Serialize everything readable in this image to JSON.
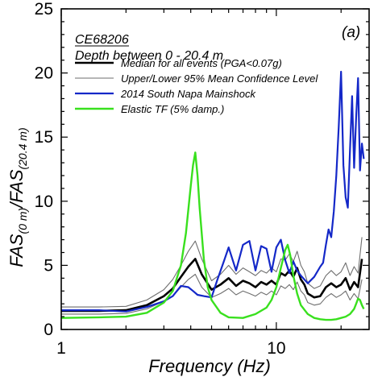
{
  "chart_data": {
    "type": "line",
    "station": "CE68206",
    "depth_note": "Depth between 0 - 20.4 m",
    "panel_label": "(a)",
    "xlabel": "Frequency (Hz)",
    "ylabel": {
      "base1": "FAS",
      "sub1": "(0 m)",
      "sep": "/",
      "base2": "FAS",
      "sub2": "(20.4 m)"
    },
    "xscale": "log",
    "xlim": [
      1,
      27
    ],
    "ylim": [
      0,
      25
    ],
    "xticks": [
      {
        "value": 1,
        "label": "1"
      },
      {
        "value": 10,
        "label": "10"
      }
    ],
    "yticks": [
      {
        "value": 0,
        "label": "0"
      },
      {
        "value": 5,
        "label": "5"
      },
      {
        "value": 10,
        "label": "10"
      },
      {
        "value": 15,
        "label": "15"
      },
      {
        "value": 20,
        "label": "20"
      },
      {
        "value": 25,
        "label": "25"
      }
    ],
    "grid": false,
    "legend_position": "top-left",
    "series": [
      {
        "name": "Median for all events (PGA<0.07g)",
        "color": "#000000",
        "width": 2.6,
        "x": [
          1.0,
          1.5,
          2.0,
          2.5,
          3.0,
          3.3,
          3.6,
          3.9,
          4.2,
          4.5,
          5.0,
          5.5,
          6.0,
          6.5,
          7.0,
          7.5,
          8.0,
          8.5,
          9.0,
          9.5,
          10.0,
          10.5,
          11.0,
          11.5,
          12.0,
          12.5,
          13.0,
          13.5,
          14.0,
          15.0,
          16.0,
          17.0,
          18.0,
          19.0,
          20.0,
          21.0,
          22.0,
          23.0,
          24.0,
          25.0
        ],
        "y": [
          1.45,
          1.45,
          1.5,
          1.9,
          2.6,
          3.2,
          4.1,
          4.9,
          5.5,
          4.3,
          3.1,
          3.5,
          4.0,
          3.4,
          3.8,
          3.6,
          3.3,
          3.7,
          3.5,
          3.8,
          3.5,
          4.4,
          4.2,
          4.6,
          4.1,
          4.8,
          3.9,
          3.5,
          2.8,
          2.5,
          2.6,
          3.3,
          3.6,
          3.3,
          3.5,
          4.0,
          3.1,
          3.7,
          3.3,
          5.5
        ]
      },
      {
        "name": "Upper/Lower 95% Mean Confidence Level",
        "color": "#6e6e6e",
        "width": 1.1,
        "x": [
          1.0,
          1.5,
          2.0,
          2.5,
          3.0,
          3.3,
          3.6,
          3.9,
          4.2,
          4.5,
          5.0,
          5.5,
          6.0,
          6.5,
          7.0,
          7.5,
          8.0,
          8.5,
          9.0,
          9.5,
          10.0,
          10.5,
          11.0,
          11.5,
          12.0,
          12.5,
          13.0,
          13.5,
          14.0,
          15.0,
          16.0,
          17.0,
          18.0,
          19.0,
          20.0,
          21.0,
          22.0,
          23.0,
          24.0,
          25.0
        ],
        "y": [
          1.75,
          1.75,
          1.8,
          2.3,
          3.1,
          3.9,
          5.0,
          6.1,
          6.9,
          5.5,
          3.8,
          4.3,
          5.0,
          4.3,
          4.8,
          4.5,
          4.2,
          4.6,
          4.4,
          4.8,
          4.5,
          5.5,
          5.4,
          5.9,
          5.3,
          6.1,
          5.0,
          4.5,
          3.6,
          3.2,
          3.4,
          4.2,
          4.6,
          4.2,
          4.5,
          5.2,
          4.2,
          4.9,
          4.4,
          7.2
        ]
      },
      {
        "name": "",
        "color": "#6e6e6e",
        "width": 1.1,
        "x": [
          1.0,
          1.5,
          2.0,
          2.5,
          3.0,
          3.3,
          3.6,
          3.9,
          4.2,
          4.5,
          5.0,
          5.5,
          6.0,
          6.5,
          7.0,
          7.5,
          8.0,
          8.5,
          9.0,
          9.5,
          10.0,
          10.5,
          11.0,
          11.5,
          12.0,
          12.5,
          13.0,
          13.5,
          14.0,
          15.0,
          16.0,
          17.0,
          18.0,
          19.0,
          20.0,
          21.0,
          22.0,
          23.0,
          24.0,
          25.0
        ],
        "y": [
          1.2,
          1.2,
          1.25,
          1.6,
          2.2,
          2.6,
          3.3,
          3.9,
          4.3,
          3.3,
          2.5,
          2.8,
          3.2,
          2.7,
          3.0,
          2.8,
          2.6,
          2.9,
          2.7,
          3.0,
          2.7,
          3.4,
          3.2,
          3.5,
          3.1,
          3.7,
          3.0,
          2.7,
          2.1,
          1.9,
          2.0,
          2.5,
          2.8,
          2.5,
          2.7,
          3.0,
          2.3,
          2.8,
          2.4,
          3.9
        ]
      },
      {
        "name": "2014 South Napa Mainshock",
        "color": "#1428c8",
        "width": 2.2,
        "x": [
          1.0,
          1.5,
          2.0,
          2.5,
          3.0,
          3.3,
          3.6,
          3.9,
          4.1,
          4.3,
          4.6,
          5.0,
          5.3,
          5.7,
          6.0,
          6.5,
          7.0,
          7.5,
          8.0,
          8.5,
          9.0,
          9.5,
          10.0,
          10.5,
          11.0,
          11.5,
          12.0,
          12.5,
          13.0,
          14.0,
          15.0,
          16.0,
          16.5,
          17.0,
          17.5,
          18.0,
          18.5,
          19.0,
          19.5,
          20.0,
          20.5,
          21.0,
          21.5,
          22.0,
          22.5,
          23.0,
          23.5,
          24.0,
          24.5,
          25.0,
          25.5
        ],
        "y": [
          1.5,
          1.5,
          1.4,
          1.75,
          2.2,
          2.6,
          3.4,
          3.3,
          3.0,
          2.7,
          2.6,
          2.5,
          3.8,
          5.3,
          6.4,
          4.6,
          6.6,
          6.9,
          4.6,
          6.5,
          6.3,
          4.5,
          6.4,
          7.0,
          5.4,
          4.4,
          5.3,
          4.6,
          4.2,
          3.6,
          4.1,
          4.9,
          5.2,
          6.6,
          7.8,
          7.2,
          9.2,
          12.0,
          15.8,
          20.1,
          12.8,
          10.3,
          9.5,
          14.0,
          18.2,
          12.6,
          16.5,
          19.6,
          12.4,
          14.5,
          13.3
        ]
      },
      {
        "name": "Elastic TF (5% damp.)",
        "color": "#39e01e",
        "width": 2.4,
        "x": [
          1.0,
          1.5,
          2.0,
          2.5,
          3.0,
          3.3,
          3.6,
          3.8,
          4.0,
          4.1,
          4.2,
          4.3,
          4.4,
          4.6,
          4.8,
          5.0,
          5.5,
          6.0,
          7.0,
          8.0,
          9.0,
          9.5,
          10.0,
          10.5,
          11.0,
          11.3,
          11.6,
          12.0,
          12.5,
          13.0,
          14.0,
          15.0,
          16.0,
          17.0,
          18.0,
          19.0,
          20.0,
          21.0,
          22.0,
          23.0,
          23.5,
          24.0,
          24.5,
          25.0,
          25.5
        ],
        "y": [
          0.9,
          0.95,
          1.0,
          1.3,
          2.1,
          3.0,
          5.0,
          7.5,
          11.2,
          12.8,
          13.8,
          12.0,
          9.5,
          5.5,
          3.3,
          2.3,
          1.3,
          0.95,
          0.9,
          1.2,
          1.7,
          2.3,
          3.3,
          4.8,
          6.2,
          6.6,
          5.8,
          4.2,
          2.8,
          1.9,
          1.2,
          0.9,
          0.8,
          0.75,
          0.75,
          0.8,
          0.9,
          1.0,
          1.2,
          1.6,
          2.0,
          2.4,
          2.3,
          1.9,
          1.6
        ]
      }
    ]
  }
}
